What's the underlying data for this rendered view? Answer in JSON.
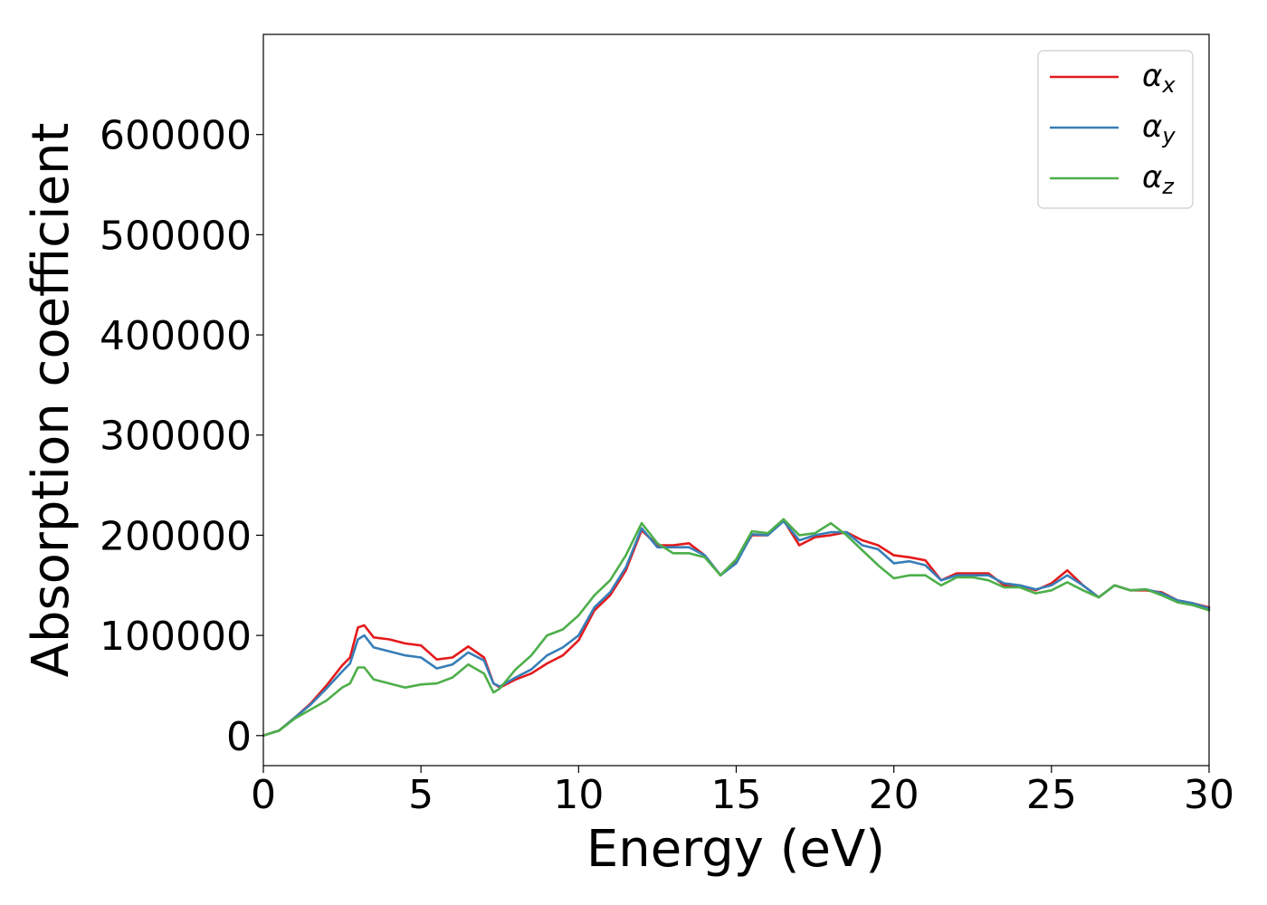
{
  "chart_data": {
    "type": "line",
    "title": "",
    "xlabel": "Energy (eV)",
    "ylabel": "Absorption coefficient",
    "xlim": [
      0,
      30
    ],
    "ylim": [
      -30000,
      700000
    ],
    "xticks": [
      0,
      5,
      10,
      15,
      20,
      25,
      30
    ],
    "xtick_labels": [
      "0",
      "5",
      "10",
      "15",
      "20",
      "25",
      "30"
    ],
    "yticks": [
      0,
      100000,
      200000,
      300000,
      400000,
      500000,
      600000
    ],
    "ytick_labels": [
      "0",
      "100000",
      "200000",
      "300000",
      "400000",
      "500000",
      "600000"
    ],
    "grid": false,
    "legend_position": "top-right",
    "x": [
      0,
      0.5,
      1,
      1.5,
      2,
      2.5,
      2.75,
      3,
      3.2,
      3.5,
      4,
      4.5,
      5,
      5.5,
      6,
      6.5,
      7,
      7.3,
      7.5,
      8,
      8.5,
      9,
      9.5,
      10,
      10.5,
      11,
      11.5,
      12,
      12.5,
      13,
      13.5,
      14,
      14.5,
      15,
      15.5,
      16,
      16.5,
      17,
      17.5,
      18,
      18.5,
      19,
      19.5,
      20,
      20.5,
      21,
      21.5,
      22,
      22.5,
      23,
      23.5,
      24,
      24.5,
      25,
      25.5,
      26,
      26.5,
      27,
      27.5,
      28,
      28.5,
      29,
      29.5,
      30
    ],
    "series": [
      {
        "name": "α_x",
        "color": "#e41a1c",
        "values": [
          0,
          5000,
          18000,
          32000,
          50000,
          70000,
          78000,
          108000,
          110000,
          98000,
          96000,
          92000,
          90000,
          76000,
          78000,
          89000,
          78000,
          52000,
          48000,
          56000,
          62000,
          72000,
          80000,
          95000,
          125000,
          140000,
          165000,
          205000,
          190000,
          190000,
          192000,
          180000,
          160000,
          175000,
          200000,
          200000,
          215000,
          190000,
          198000,
          200000,
          203000,
          195000,
          190000,
          180000,
          178000,
          175000,
          155000,
          162000,
          162000,
          162000,
          150000,
          150000,
          145000,
          152000,
          165000,
          150000,
          138000,
          150000,
          145000,
          145000,
          143000,
          135000,
          132000,
          128000
        ]
      },
      {
        "name": "α_y",
        "color": "#377eb8",
        "values": [
          0,
          5000,
          18000,
          31000,
          47000,
          64000,
          72000,
          96000,
          100000,
          88000,
          84000,
          80000,
          78000,
          67000,
          71000,
          83000,
          75000,
          52000,
          49000,
          58000,
          66000,
          80000,
          88000,
          100000,
          128000,
          143000,
          168000,
          207000,
          188000,
          188000,
          188000,
          180000,
          160000,
          172000,
          201000,
          200000,
          214000,
          195000,
          200000,
          203000,
          203000,
          190000,
          186000,
          172000,
          174000,
          170000,
          155000,
          160000,
          160000,
          160000,
          152000,
          150000,
          146000,
          150000,
          160000,
          150000,
          138000,
          150000,
          145000,
          146000,
          142000,
          135000,
          132000,
          127000
        ]
      },
      {
        "name": "α_z",
        "color": "#4daf4a",
        "values": [
          0,
          5000,
          17000,
          26000,
          35000,
          48000,
          52000,
          68000,
          68000,
          56000,
          52000,
          48000,
          51000,
          52000,
          58000,
          71000,
          62000,
          43000,
          47000,
          66000,
          80000,
          100000,
          106000,
          120000,
          140000,
          155000,
          180000,
          212000,
          192000,
          182000,
          182000,
          178000,
          160000,
          176000,
          204000,
          202000,
          216000,
          200000,
          202000,
          212000,
          200000,
          185000,
          170000,
          157000,
          160000,
          160000,
          150000,
          158000,
          158000,
          155000,
          148000,
          148000,
          142000,
          145000,
          153000,
          145000,
          138000,
          150000,
          145000,
          146000,
          140000,
          133000,
          130000,
          125000
        ]
      }
    ]
  }
}
